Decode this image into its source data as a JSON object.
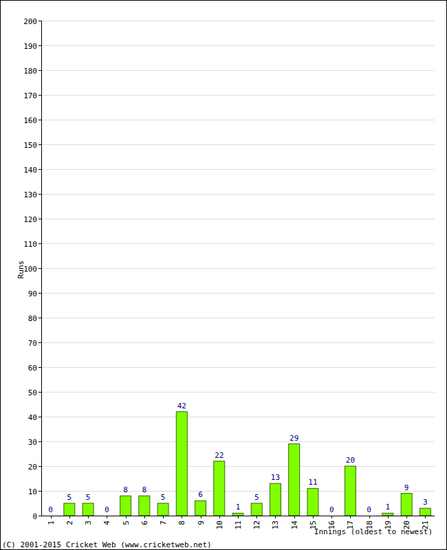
{
  "chart_data": {
    "type": "bar",
    "x_label": "Innings (oldest to newest)",
    "y_label": "Runs",
    "annotations": [
      "(C) 2001-2015 Cricket Web (www.cricketweb.net)"
    ],
    "categories": [
      "1",
      "2",
      "3",
      "4",
      "5",
      "6",
      "7",
      "8",
      "9",
      "10",
      "11",
      "12",
      "13",
      "14",
      "15",
      "16",
      "17",
      "18",
      "19",
      "20",
      "21"
    ],
    "values": [
      0,
      5,
      5,
      0,
      8,
      8,
      5,
      42,
      6,
      22,
      1,
      5,
      13,
      29,
      11,
      0,
      20,
      0,
      1,
      9,
      3
    ],
    "color": "#80ff00",
    "ylim": [
      0,
      200
    ],
    "yticks": [
      0,
      10,
      20,
      30,
      40,
      50,
      60,
      70,
      80,
      90,
      100,
      110,
      120,
      130,
      140,
      150,
      160,
      170,
      180,
      190,
      200
    ],
    "grid": true,
    "data_labels": true
  }
}
